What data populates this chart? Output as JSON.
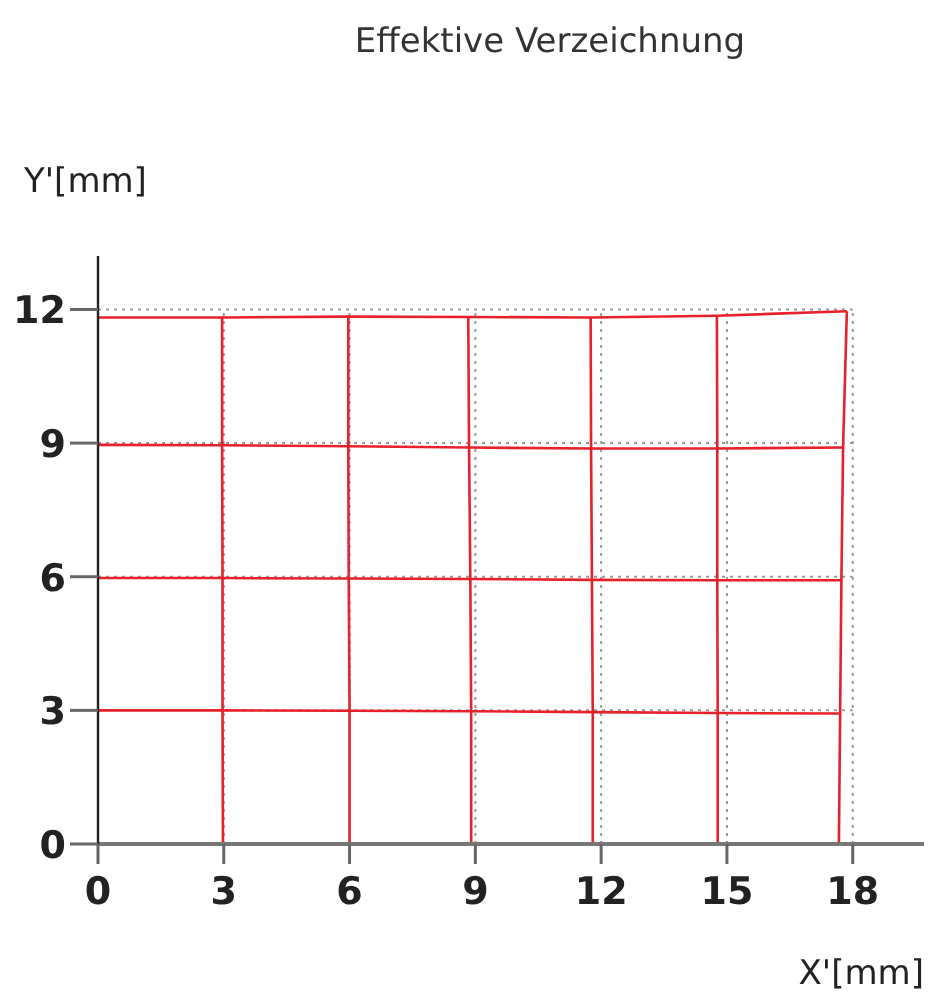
{
  "chart_data": {
    "type": "line",
    "title": "Effektive Verzeichnung",
    "xlabel": "X'[mm]",
    "ylabel": "Y'[mm]",
    "xlim": [
      0,
      19.7
    ],
    "ylim": [
      0,
      13.2
    ],
    "xticks": [
      0,
      3,
      6,
      9,
      12,
      15,
      18
    ],
    "yticks": [
      0,
      3,
      6,
      9,
      12
    ],
    "grid": true,
    "marker": "none",
    "line_style": "solid",
    "series": [
      {
        "color": "#e8202a",
        "x": [
          2.98,
          2.97,
          2.97,
          2.96,
          2.96
        ],
        "values": [
          0,
          3,
          5.97,
          8.95,
          11.82
        ]
      },
      {
        "color": "#e8202a",
        "x": [
          6.0,
          6.0,
          5.98,
          5.97,
          5.97
        ],
        "values": [
          0,
          2.99,
          5.96,
          8.93,
          11.84
        ]
      },
      {
        "color": "#e8202a",
        "x": [
          8.9,
          8.9,
          8.88,
          8.85,
          8.83
        ],
        "values": [
          0,
          2.98,
          5.95,
          8.9,
          11.83
        ]
      },
      {
        "color": "#e8202a",
        "x": [
          11.8,
          11.8,
          11.78,
          11.76,
          11.75
        ],
        "values": [
          0,
          2.96,
          5.93,
          8.88,
          11.82
        ]
      },
      {
        "color": "#e8202a",
        "x": [
          14.78,
          14.78,
          14.77,
          14.77,
          14.76
        ],
        "values": [
          0,
          2.94,
          5.92,
          8.88,
          11.86
        ]
      },
      {
        "color": "#e8202a",
        "x": [
          17.67,
          17.7,
          17.73,
          17.77,
          17.86
        ],
        "values": [
          0,
          2.93,
          5.92,
          8.9,
          11.96
        ]
      },
      {
        "color": "#e8202a",
        "x": [
          0,
          2.96,
          5.97,
          8.83,
          11.75,
          14.76,
          17.86
        ],
        "values": [
          11.82,
          11.82,
          11.84,
          11.83,
          11.82,
          11.86,
          11.96
        ]
      },
      {
        "color": "#e8202a",
        "x": [
          0,
          2.96,
          5.97,
          8.85,
          11.76,
          14.77,
          17.77
        ],
        "values": [
          8.96,
          8.95,
          8.93,
          8.9,
          8.88,
          8.88,
          8.9
        ]
      },
      {
        "color": "#e8202a",
        "x": [
          0,
          2.97,
          5.98,
          8.88,
          11.78,
          14.77,
          17.73
        ],
        "values": [
          5.97,
          5.97,
          5.96,
          5.95,
          5.93,
          5.92,
          5.92
        ]
      },
      {
        "color": "#e8202a",
        "x": [
          0,
          2.97,
          6.0,
          8.9,
          11.8,
          14.78,
          17.7
        ],
        "values": [
          3.0,
          3.0,
          2.99,
          2.98,
          2.96,
          2.94,
          2.93
        ]
      }
    ]
  }
}
